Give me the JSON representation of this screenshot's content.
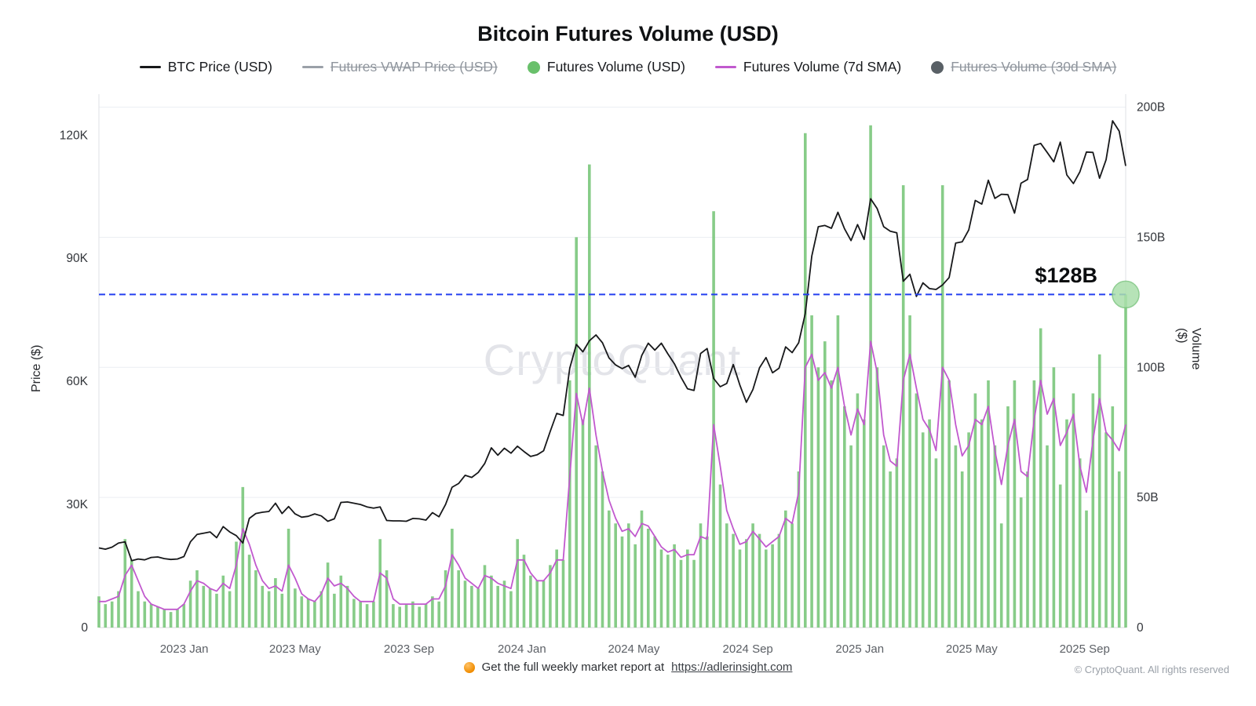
{
  "title": "Bitcoin Futures Volume (USD)",
  "watermark": "CryptoQuant",
  "annotation": {
    "label": "$128B"
  },
  "legend": {
    "items": [
      {
        "label": "BTC Price (USD)",
        "type": "line",
        "color": "#17181a",
        "enabled": true
      },
      {
        "label": "Futures VWAP Price (USD)",
        "type": "line",
        "color": "#9aa0a8",
        "enabled": false
      },
      {
        "label": "Futures Volume (USD)",
        "type": "dot",
        "color": "#69c06b",
        "enabled": true
      },
      {
        "label": "Futures Volume (7d SMA)",
        "type": "line",
        "color": "#c159ce",
        "enabled": true
      },
      {
        "label": "Futures Volume (30d SMA)",
        "type": "dot",
        "color": "#596066",
        "enabled": false
      }
    ]
  },
  "footer": {
    "report_text": "Get the full weekly market report at",
    "report_link": "https://adlerinsight.com",
    "copyright": "© CryptoQuant. All rights reserved"
  },
  "chart_data": {
    "type": "combo",
    "granularity": "weekly (estimated from chart)",
    "x_range": {
      "start": "2022 Oct",
      "end": "2025 Oct"
    },
    "x_ticks": [
      {
        "label": "2023 Jan",
        "pos": 0.083
      },
      {
        "label": "2023 May",
        "pos": 0.191
      },
      {
        "label": "2023 Sep",
        "pos": 0.302
      },
      {
        "label": "2024 Jan",
        "pos": 0.412
      },
      {
        "label": "2024 May",
        "pos": 0.521
      },
      {
        "label": "2024 Sep",
        "pos": 0.632
      },
      {
        "label": "2025 Jan",
        "pos": 0.741
      },
      {
        "label": "2025 May",
        "pos": 0.85
      },
      {
        "label": "2025 Sep",
        "pos": 0.96
      }
    ],
    "y_left": {
      "label": "Price ($)",
      "value_unit": "thousand USD",
      "max": 130,
      "ticks": [
        {
          "label": "0",
          "value": 0
        },
        {
          "label": "30K",
          "value": 30
        },
        {
          "label": "60K",
          "value": 60
        },
        {
          "label": "90K",
          "value": 90
        },
        {
          "label": "120K",
          "value": 120
        }
      ]
    },
    "y_right": {
      "label": "Volume ($)",
      "value_unit": "billion USD",
      "max": 205,
      "ticks": [
        {
          "label": "0",
          "value": 0
        },
        {
          "label": "50B",
          "value": 50
        },
        {
          "label": "100B",
          "value": 100
        },
        {
          "label": "150B",
          "value": 150
        },
        {
          "label": "200B",
          "value": 200
        }
      ]
    },
    "annotation_line": {
      "value": 128,
      "axis": "right",
      "label": "$128B",
      "color": "#2440f0",
      "style": "dashed",
      "marker": "circle",
      "marker_fill": "#aadfab",
      "marker_stroke": "#7cc57f"
    },
    "series": [
      {
        "name": "BTC Price (USD)",
        "type": "line",
        "axis": "left",
        "color": "#17181a",
        "values": [
          19.4,
          19.1,
          19.6,
          20.6,
          20.9,
          16.3,
          16.7,
          16.5,
          17.1,
          17.2,
          16.8,
          16.6,
          16.7,
          17.3,
          20.9,
          22.7,
          23.0,
          23.3,
          21.9,
          24.6,
          23.3,
          22.4,
          20.6,
          26.6,
          27.8,
          28.1,
          28.3,
          30.3,
          27.8,
          29.5,
          27.7,
          26.9,
          27.1,
          27.7,
          27.2,
          25.9,
          26.5,
          30.5,
          30.6,
          30.3,
          30.0,
          29.4,
          29.1,
          29.4,
          26.1,
          26.0,
          26.0,
          25.9,
          26.6,
          26.5,
          26.2,
          28.0,
          27.0,
          30.0,
          34.2,
          35.1,
          37.1,
          36.6,
          37.8,
          40.0,
          43.8,
          42.0,
          43.7,
          42.5,
          44.2,
          42.9,
          41.7,
          42.1,
          43.1,
          47.8,
          52.2,
          51.7,
          63.2,
          69.0,
          67.2,
          69.9,
          71.3,
          69.4,
          65.7,
          64.0,
          63.1,
          63.9,
          61.0,
          66.3,
          69.3,
          67.6,
          69.3,
          66.7,
          64.3,
          61.0,
          58.2,
          57.8,
          66.8,
          68.0,
          60.7,
          58.7,
          59.5,
          64.1,
          59.1,
          54.9,
          58.0,
          63.3,
          65.8,
          62.1,
          63.2,
          68.4,
          67.0,
          69.4,
          76.5,
          90.5,
          97.7,
          98.0,
          97.3,
          101.2,
          97.2,
          94.3,
          98.2,
          94.6,
          104.5,
          102.1,
          97.7,
          96.6,
          96.2,
          84.4,
          86.1,
          80.7,
          84.0,
          82.6,
          82.4,
          83.5,
          85.3,
          93.7,
          94.0,
          96.9,
          104.1,
          103.2,
          109.0,
          104.6,
          105.6,
          105.5,
          101.0,
          108.3,
          109.2,
          117.5,
          118.0,
          115.8,
          113.5,
          118.3,
          110.3,
          108.2,
          111.1,
          115.9,
          115.8,
          109.5,
          114.0,
          123.5,
          121.0,
          112.5
        ]
      },
      {
        "name": "Futures Volume (USD)",
        "type": "bar",
        "axis": "right",
        "color": "#76c578",
        "values": [
          12,
          9,
          10,
          14,
          34,
          26,
          14,
          10,
          9,
          8,
          7,
          6,
          7,
          9,
          18,
          22,
          16,
          15,
          13,
          20,
          14,
          33,
          54,
          28,
          22,
          16,
          14,
          19,
          13,
          38,
          15,
          12,
          11,
          10,
          14,
          25,
          13,
          20,
          16,
          11,
          10,
          9,
          10,
          34,
          22,
          9,
          8,
          9,
          10,
          8,
          9,
          12,
          10,
          22,
          38,
          22,
          18,
          16,
          15,
          24,
          20,
          16,
          18,
          14,
          34,
          28,
          20,
          18,
          18,
          24,
          30,
          26,
          95,
          150,
          80,
          178,
          70,
          60,
          45,
          40,
          35,
          40,
          32,
          45,
          38,
          35,
          30,
          28,
          32,
          26,
          30,
          26,
          40,
          35,
          160,
          55,
          40,
          36,
          30,
          34,
          40,
          36,
          30,
          32,
          36,
          45,
          40,
          60,
          190,
          120,
          100,
          110,
          95,
          120,
          85,
          70,
          90,
          80,
          193,
          100,
          70,
          60,
          65,
          170,
          120,
          90,
          75,
          80,
          65,
          170,
          95,
          70,
          60,
          75,
          90,
          80,
          95,
          70,
          40,
          85,
          95,
          50,
          60,
          95,
          115,
          70,
          100,
          55,
          80,
          90,
          65,
          45,
          90,
          105,
          75,
          85,
          60,
          128
        ]
      },
      {
        "name": "Futures Volume (7d SMA)",
        "type": "line",
        "axis": "right",
        "color": "#c159ce",
        "values": [
          10,
          10,
          11,
          12,
          20,
          24,
          18,
          12,
          9,
          8,
          7,
          7,
          7,
          9,
          14,
          18,
          17,
          15,
          14,
          17,
          15,
          24,
          38,
          32,
          24,
          18,
          15,
          16,
          14,
          24,
          19,
          13,
          11,
          10,
          13,
          19,
          16,
          17,
          15,
          12,
          10,
          10,
          10,
          21,
          19,
          11,
          9,
          9,
          9,
          9,
          9,
          11,
          11,
          16,
          28,
          24,
          19,
          17,
          15,
          20,
          19,
          17,
          16,
          15,
          26,
          26,
          21,
          18,
          18,
          21,
          26,
          26,
          58,
          90,
          78,
          92,
          74,
          60,
          49,
          42,
          37,
          38,
          35,
          40,
          39,
          35,
          31,
          29,
          30,
          27,
          28,
          28,
          35,
          34,
          78,
          62,
          45,
          38,
          32,
          33,
          37,
          34,
          31,
          33,
          35,
          42,
          40,
          52,
          100,
          105,
          95,
          98,
          92,
          100,
          85,
          74,
          84,
          78,
          110,
          98,
          74,
          64,
          62,
          95,
          105,
          92,
          80,
          76,
          68,
          100,
          95,
          78,
          66,
          70,
          80,
          78,
          85,
          68,
          55,
          70,
          80,
          60,
          58,
          80,
          95,
          82,
          88,
          70,
          75,
          82,
          62,
          52,
          72,
          88,
          75,
          72,
          68,
          78
        ]
      }
    ]
  }
}
